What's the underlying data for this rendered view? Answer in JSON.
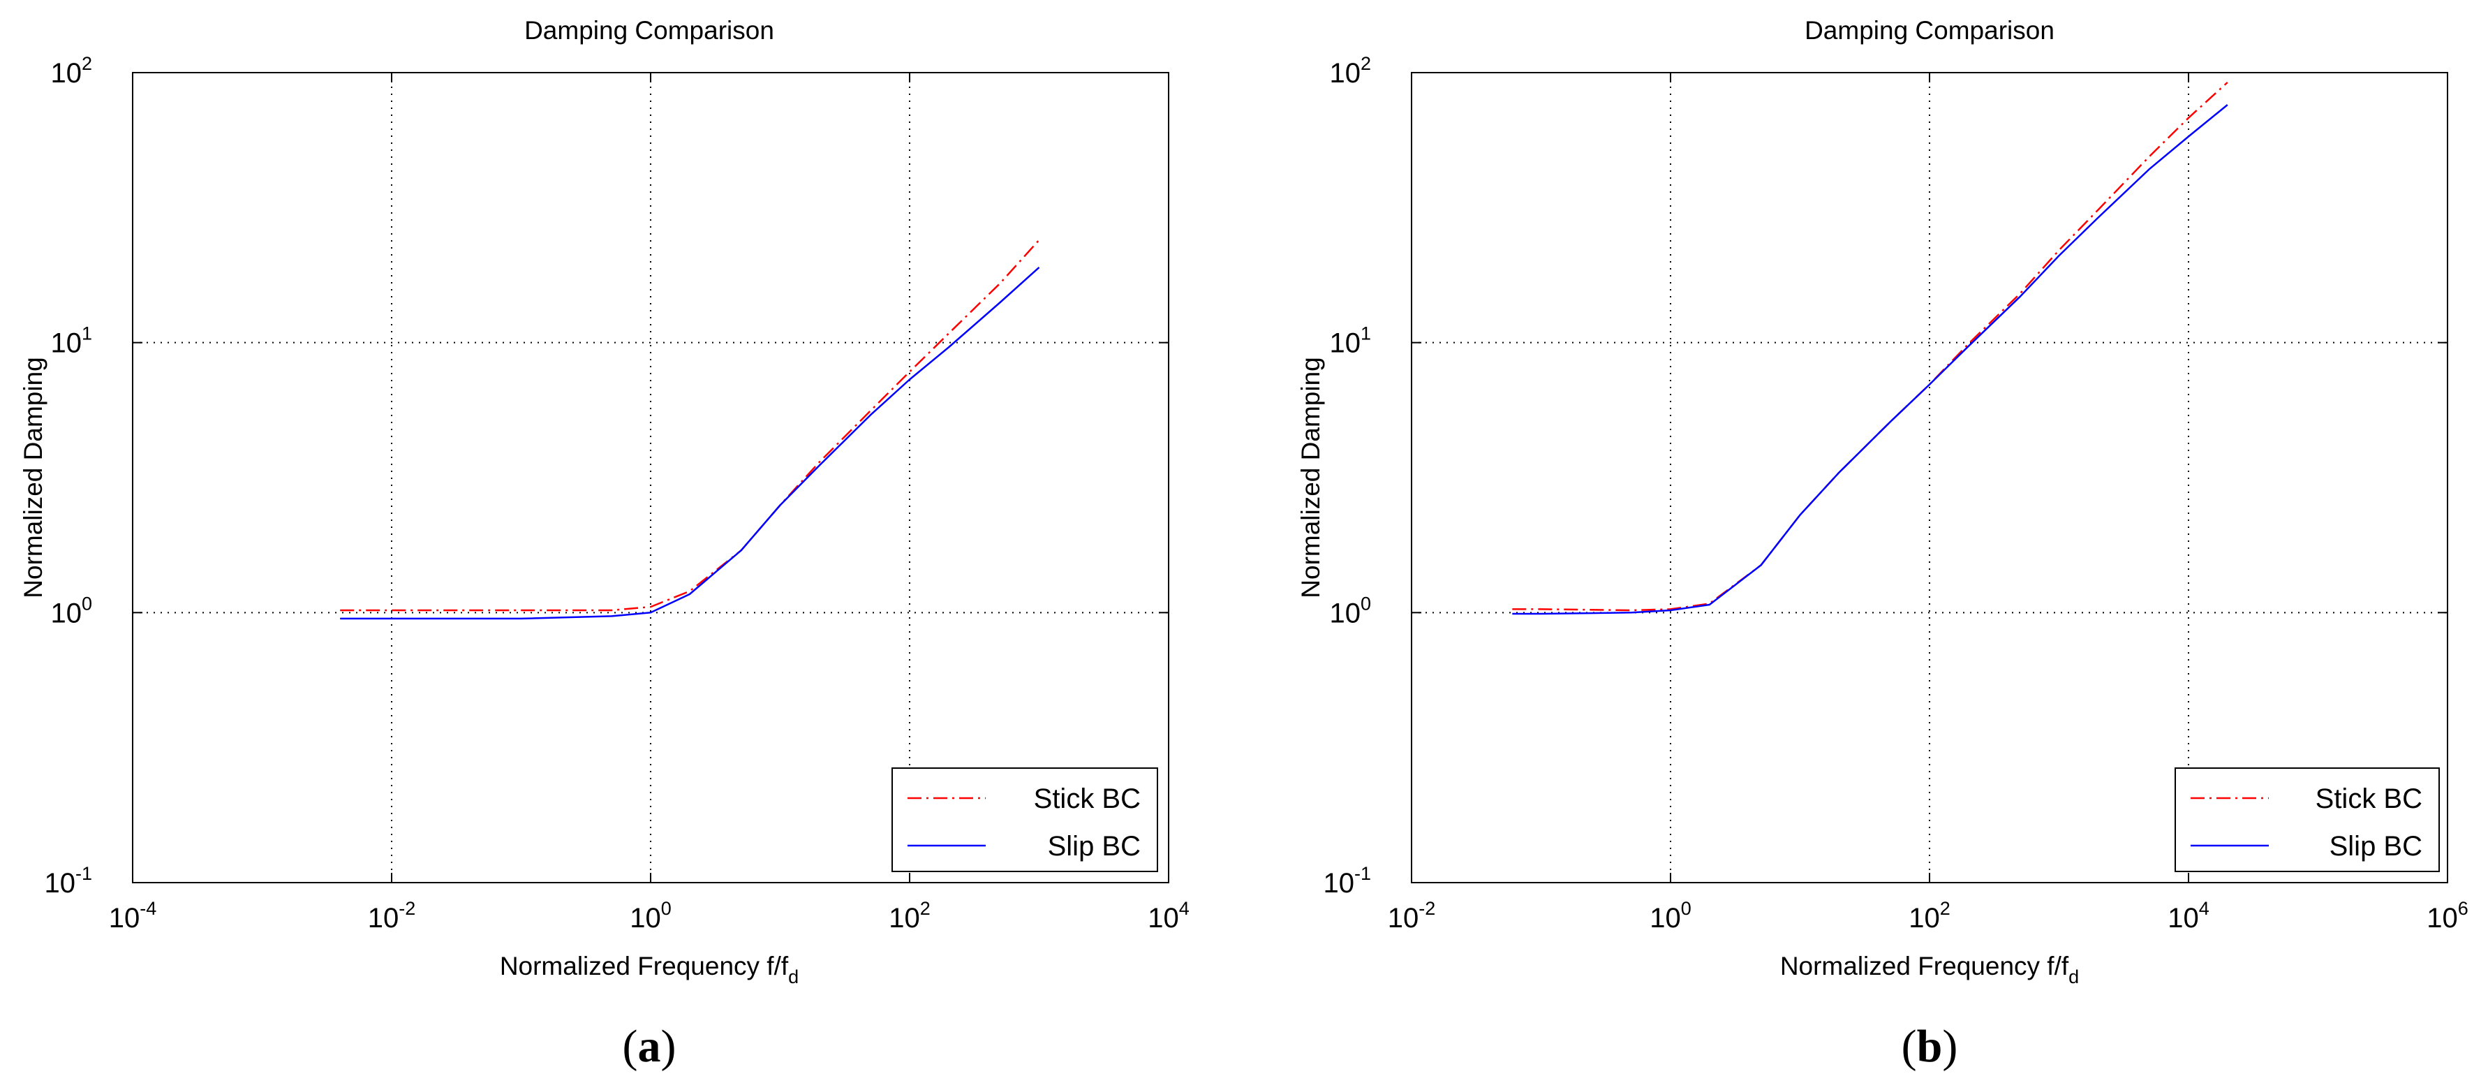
{
  "chart_data": [
    {
      "type": "line",
      "panel_caption": "a",
      "title": "Damping Comparison",
      "xlabel": "Normalized Frequency f/f",
      "xlabel_subscript": "d",
      "ylabel": "Normalized Damping",
      "xscale": "log",
      "yscale": "log",
      "xlim_exp": [
        -4,
        4
      ],
      "ylim_exp": [
        -1,
        2
      ],
      "x_ticks": [
        {
          "base": "10",
          "exp": "-4"
        },
        {
          "base": "10",
          "exp": "-2"
        },
        {
          "base": "10",
          "exp": "0"
        },
        {
          "base": "10",
          "exp": "2"
        },
        {
          "base": "10",
          "exp": "4"
        }
      ],
      "y_ticks": [
        {
          "base": "10",
          "exp": "-1"
        },
        {
          "base": "10",
          "exp": "0"
        },
        {
          "base": "10",
          "exp": "1"
        },
        {
          "base": "10",
          "exp": "2"
        }
      ],
      "grid": true,
      "legend_position": "bottom-right",
      "series": [
        {
          "name": "Stick BC",
          "color": "#ff0000",
          "style": "dash-dot",
          "x": [
            0.004,
            0.01,
            0.1,
            0.5,
            1,
            2,
            5,
            10,
            20,
            50,
            100,
            200,
            500,
            1000
          ],
          "y": [
            1.02,
            1.02,
            1.02,
            1.02,
            1.05,
            1.2,
            1.7,
            2.5,
            3.6,
            5.6,
            7.8,
            10.8,
            16.6,
            24
          ]
        },
        {
          "name": "Slip BC",
          "color": "#0000ff",
          "style": "solid",
          "x": [
            0.004,
            0.01,
            0.1,
            0.5,
            1,
            2,
            5,
            10,
            20,
            50,
            100,
            200,
            500,
            1000
          ],
          "y": [
            0.95,
            0.95,
            0.95,
            0.97,
            1.0,
            1.17,
            1.7,
            2.5,
            3.5,
            5.4,
            7.3,
            9.6,
            14.1,
            19
          ]
        }
      ]
    },
    {
      "type": "line",
      "panel_caption": "b",
      "title": "Damping Comparison",
      "xlabel": "Normalized Frequency f/f",
      "xlabel_subscript": "d",
      "ylabel": "Normalized Damping",
      "xscale": "log",
      "yscale": "log",
      "xlim_exp": [
        -2,
        6
      ],
      "ylim_exp": [
        -1,
        2
      ],
      "x_ticks": [
        {
          "base": "10",
          "exp": "-2"
        },
        {
          "base": "10",
          "exp": "0"
        },
        {
          "base": "10",
          "exp": "2"
        },
        {
          "base": "10",
          "exp": "4"
        },
        {
          "base": "10",
          "exp": "6"
        }
      ],
      "y_ticks": [
        {
          "base": "10",
          "exp": "-1"
        },
        {
          "base": "10",
          "exp": "0"
        },
        {
          "base": "10",
          "exp": "1"
        },
        {
          "base": "10",
          "exp": "2"
        }
      ],
      "grid": true,
      "legend_position": "bottom-right",
      "series": [
        {
          "name": "Stick BC",
          "color": "#ff0000",
          "style": "dash-dot",
          "x": [
            0.06,
            0.1,
            0.5,
            1,
            2,
            5,
            10,
            20,
            50,
            100,
            200,
            500,
            1000,
            2000,
            5000,
            10000,
            20000
          ],
          "y": [
            1.03,
            1.03,
            1.02,
            1.03,
            1.08,
            1.5,
            2.3,
            3.3,
            5.1,
            7.0,
            9.9,
            15.2,
            22,
            31,
            49,
            68,
            92
          ]
        },
        {
          "name": "Slip BC",
          "color": "#0000ff",
          "style": "solid",
          "x": [
            0.06,
            0.1,
            0.5,
            1,
            2,
            5,
            10,
            20,
            50,
            100,
            200,
            500,
            1000,
            2000,
            5000,
            10000,
            20000
          ],
          "y": [
            0.99,
            0.99,
            1.0,
            1.02,
            1.07,
            1.5,
            2.3,
            3.3,
            5.1,
            7.0,
            9.7,
            14.8,
            21,
            29,
            44,
            58,
            76
          ]
        }
      ]
    }
  ]
}
